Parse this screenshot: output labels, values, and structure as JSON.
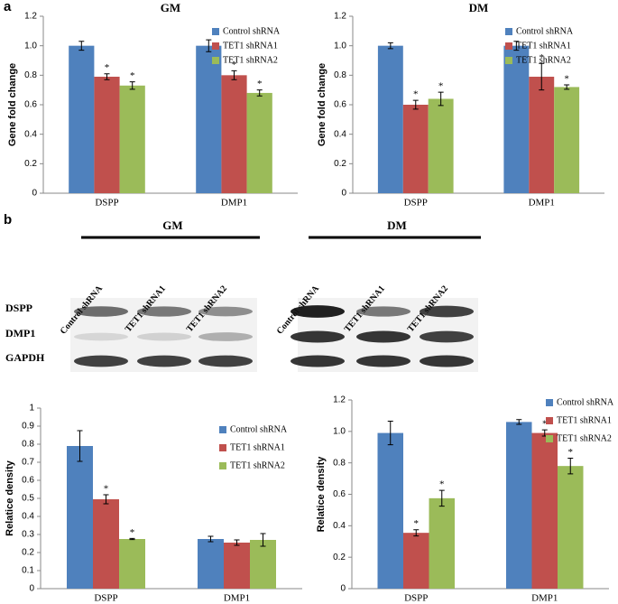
{
  "panel_labels": [
    "a",
    "b"
  ],
  "blot": {
    "groups": [
      {
        "title": "GM",
        "lanes": [
          "Control shRNA",
          "TET1 shRNA1",
          "TET1 shRNA2"
        ]
      },
      {
        "title": "DM",
        "lanes": [
          "Control shRNA",
          "TET1 shRNA1",
          "TET1 shRNA2"
        ]
      }
    ],
    "rows": [
      "DSPP",
      "DMP1",
      "GAPDH"
    ]
  },
  "chart_data": [
    {
      "type": "bar",
      "title": "GM",
      "y_label": "Gene fold change",
      "categories": [
        "DSPP",
        "DMP1"
      ],
      "ylim": [
        0,
        1.2
      ],
      "yticks": [
        0,
        0.2,
        0.4,
        0.6,
        0.8,
        {
          "value": 1,
          "label": "1.0"
        },
        1.2
      ],
      "series": [
        {
          "name": "Control shRNA",
          "color": "#4f81bd",
          "values": [
            1.0,
            1.0
          ],
          "errors": [
            0.03,
            0.04
          ]
        },
        {
          "name": "TET1 shRNA1",
          "color": "#c0504d",
          "values": [
            0.79,
            0.8
          ],
          "errors": [
            0.02,
            0.03
          ],
          "significance": [
            "*",
            "*"
          ]
        },
        {
          "name": "TET1 shRNA2",
          "color": "#9bbb59",
          "values": [
            0.73,
            0.68
          ],
          "errors": [
            0.025,
            0.02
          ],
          "significance": [
            "*",
            "*"
          ]
        }
      ]
    },
    {
      "type": "bar",
      "title": "DM",
      "y_label": "Gene fold change",
      "categories": [
        "DSPP",
        "DMP1"
      ],
      "ylim": [
        0,
        1.2
      ],
      "yticks": [
        0,
        0.2,
        0.4,
        0.6,
        0.8,
        {
          "value": 1,
          "label": "1.0"
        },
        1.2
      ],
      "series": [
        {
          "name": "Control shRNA",
          "color": "#4f81bd",
          "values": [
            1.0,
            1.0
          ],
          "errors": [
            0.02,
            0.03
          ]
        },
        {
          "name": "TET1 shRNA1",
          "color": "#c0504d",
          "values": [
            0.6,
            0.79
          ],
          "errors": [
            0.03,
            0.09
          ],
          "significance": [
            "*",
            "*"
          ]
        },
        {
          "name": "TET1 shRNA2",
          "color": "#9bbb59",
          "values": [
            0.64,
            0.72
          ],
          "errors": [
            0.045,
            0.015
          ],
          "significance": [
            "*",
            "*"
          ]
        }
      ]
    },
    {
      "type": "bar",
      "y_label": "Relatice density",
      "categories": [
        "DSPP",
        "DMP1"
      ],
      "ylim": [
        0,
        1
      ],
      "yticks": [
        0,
        0.1,
        0.2,
        0.3,
        0.4,
        0.5,
        0.6,
        0.7,
        0.8,
        0.9,
        1
      ],
      "series": [
        {
          "name": "Control shRNA",
          "color": "#4f81bd",
          "values": [
            0.79,
            0.275
          ],
          "errors": [
            0.085,
            0.015
          ]
        },
        {
          "name": "TET1 shRNA1",
          "color": "#c0504d",
          "values": [
            0.495,
            0.255
          ],
          "errors": [
            0.025,
            0.015
          ],
          "significance": [
            "*",
            null
          ]
        },
        {
          "name": "TET1 shRNA2",
          "color": "#9bbb59",
          "values": [
            0.275,
            0.27
          ],
          "errors": [
            0.003,
            0.035
          ],
          "significance": [
            "*",
            null
          ]
        }
      ]
    },
    {
      "type": "bar",
      "y_label": "Relatice density",
      "categories": [
        "DSPP",
        "DMP1"
      ],
      "ylim": [
        0,
        1.2
      ],
      "yticks": [
        0,
        0.2,
        0.4,
        0.6,
        0.8,
        {
          "value": 1,
          "label": "1.0"
        },
        1.2
      ],
      "series": [
        {
          "name": "Control shRNA",
          "color": "#4f81bd",
          "values": [
            0.99,
            1.06
          ],
          "errors": [
            0.075,
            0.015
          ]
        },
        {
          "name": "TET1 shRNA1",
          "color": "#c0504d",
          "values": [
            0.355,
            0.99
          ],
          "errors": [
            0.02,
            0.02
          ],
          "significance": [
            "*",
            "*"
          ]
        },
        {
          "name": "TET1 shRNA2",
          "color": "#9bbb59",
          "values": [
            0.575,
            0.78
          ],
          "errors": [
            0.05,
            0.05
          ],
          "significance": [
            "*",
            "*"
          ]
        }
      ]
    }
  ]
}
